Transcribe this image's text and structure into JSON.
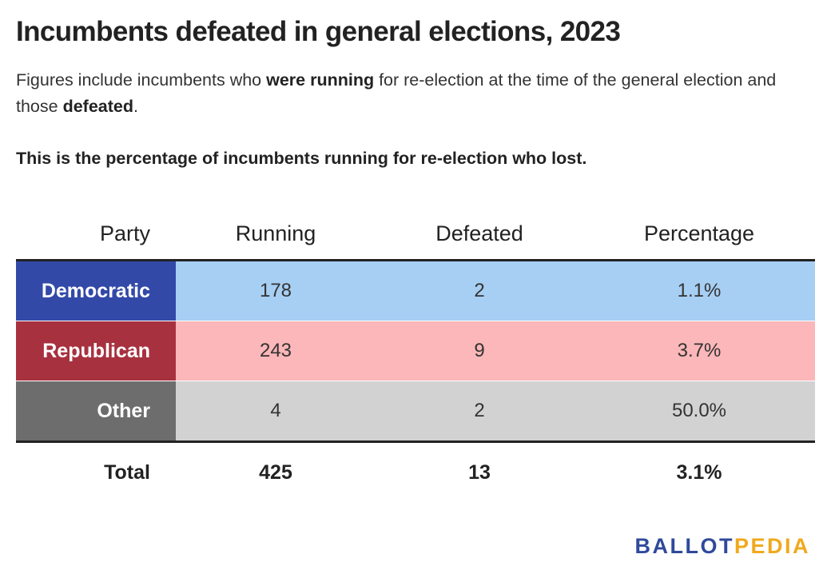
{
  "title": "Incumbents defeated in general elections, 2023",
  "description": {
    "part1": "Figures include incumbents who ",
    "bold1": "were running",
    "part2": " for re-election at the time of the general election and those ",
    "bold2": "defeated",
    "part3": "."
  },
  "note": "This is the percentage of incumbents running for re-election who lost.",
  "chart_data": {
    "type": "table",
    "columns": [
      "Party",
      "Running",
      "Defeated",
      "Percentage"
    ],
    "rows": [
      {
        "party": "Democratic",
        "running": "178",
        "defeated": "2",
        "percentage": "1.1%",
        "label_color": "#3349a8",
        "row_color": "#a7cff4"
      },
      {
        "party": "Republican",
        "running": "243",
        "defeated": "9",
        "percentage": "3.7%",
        "label_color": "#a8313f",
        "row_color": "#fbb7b9"
      },
      {
        "party": "Other",
        "running": "4",
        "defeated": "2",
        "percentage": "50.0%",
        "label_color": "#6d6d6d",
        "row_color": "#d2d2d2"
      }
    ],
    "total": {
      "party": "Total",
      "running": "425",
      "defeated": "13",
      "percentage": "3.1%"
    }
  },
  "logo": {
    "part1": "BALLOT",
    "part2": "PEDIA"
  }
}
